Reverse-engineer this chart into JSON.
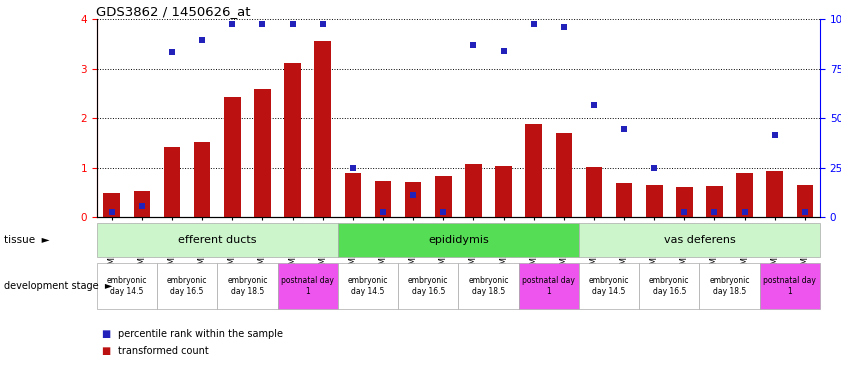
{
  "title": "GDS3862 / 1450626_at",
  "samples": [
    "GSM560923",
    "GSM560924",
    "GSM560925",
    "GSM560926",
    "GSM560927",
    "GSM560928",
    "GSM560929",
    "GSM560930",
    "GSM560931",
    "GSM560932",
    "GSM560933",
    "GSM560934",
    "GSM560935",
    "GSM560936",
    "GSM560937",
    "GSM560938",
    "GSM560939",
    "GSM560940",
    "GSM560941",
    "GSM560942",
    "GSM560943",
    "GSM560944",
    "GSM560945",
    "GSM560946"
  ],
  "transformed_count": [
    0.48,
    0.52,
    1.42,
    1.52,
    2.42,
    2.58,
    3.12,
    3.55,
    0.88,
    0.73,
    0.7,
    0.82,
    1.08,
    1.04,
    1.88,
    1.7,
    1.02,
    0.68,
    0.65,
    0.6,
    0.63,
    0.88,
    0.93,
    0.64
  ],
  "percentile_rank_scaled": [
    0.1,
    0.22,
    3.33,
    3.57,
    3.9,
    3.9,
    3.9,
    3.9,
    1.0,
    0.1,
    0.44,
    0.1,
    3.48,
    3.36,
    3.9,
    3.85,
    2.26,
    1.78,
    1.0,
    0.1,
    0.1,
    0.1,
    1.65,
    0.1
  ],
  "ylim_left": [
    0,
    4
  ],
  "ylim_right": [
    0,
    100
  ],
  "yticks_left": [
    0,
    1,
    2,
    3,
    4
  ],
  "yticks_right": [
    0,
    25,
    50,
    75,
    100
  ],
  "bar_color": "#bb1111",
  "dot_color": "#2222bb",
  "grid_color": "#000000",
  "tissues": [
    {
      "label": "efferent ducts",
      "start": 0,
      "end": 7,
      "color": "#ccf5cc"
    },
    {
      "label": "epididymis",
      "start": 8,
      "end": 15,
      "color": "#66dd66"
    },
    {
      "label": "vas deferens",
      "start": 16,
      "end": 23,
      "color": "#ccf5cc"
    }
  ],
  "dev_stages": [
    {
      "label": "embryonic\nday 14.5",
      "start": 0,
      "end": 1,
      "color": "#ffffff"
    },
    {
      "label": "embryonic\nday 16.5",
      "start": 2,
      "end": 3,
      "color": "#ffffff"
    },
    {
      "label": "embryonic\nday 18.5",
      "start": 4,
      "end": 5,
      "color": "#ffffff"
    },
    {
      "label": "postnatal day\n1",
      "start": 6,
      "end": 7,
      "color": "#ee55ee"
    },
    {
      "label": "embryonic\nday 14.5",
      "start": 8,
      "end": 9,
      "color": "#ffffff"
    },
    {
      "label": "embryonic\nday 16.5",
      "start": 10,
      "end": 11,
      "color": "#ffffff"
    },
    {
      "label": "embryonic\nday 18.5",
      "start": 12,
      "end": 13,
      "color": "#ffffff"
    },
    {
      "label": "postnatal day\n1",
      "start": 14,
      "end": 15,
      "color": "#ee55ee"
    },
    {
      "label": "embryonic\nday 14.5",
      "start": 16,
      "end": 17,
      "color": "#ffffff"
    },
    {
      "label": "embryonic\nday 16.5",
      "start": 18,
      "end": 19,
      "color": "#ffffff"
    },
    {
      "label": "embryonic\nday 18.5",
      "start": 20,
      "end": 21,
      "color": "#ffffff"
    },
    {
      "label": "postnatal day\n1",
      "start": 22,
      "end": 23,
      "color": "#ee55ee"
    }
  ],
  "legend_items": [
    {
      "label": "transformed count",
      "color": "#bb1111"
    },
    {
      "label": "percentile rank within the sample",
      "color": "#2222bb"
    }
  ]
}
